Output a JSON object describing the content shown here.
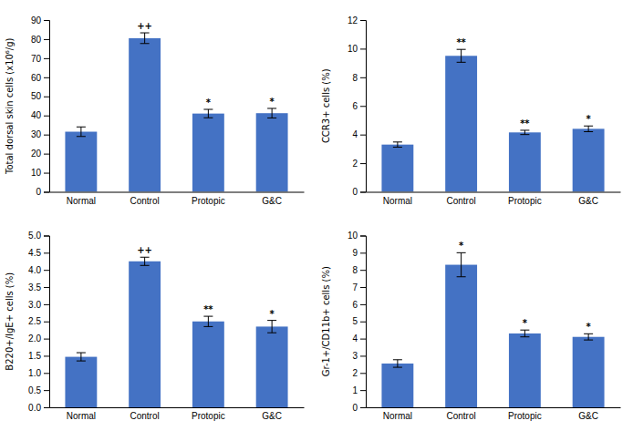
{
  "chart_data": [
    {
      "type": "bar",
      "categories": [
        "Normal",
        "Control",
        "Protopic",
        "G&C"
      ],
      "color": "#4472C4",
      "ylabel": "Total dorsal skin cells (x10⁶/g)",
      "values": [
        31.5,
        80.5,
        41.0,
        41.2
      ],
      "errors": [
        2.5,
        2.8,
        2.2,
        2.5
      ],
      "ylim": [
        0,
        90
      ],
      "yticks": [
        0,
        10,
        20,
        30,
        40,
        50,
        60,
        70,
        80,
        90
      ],
      "annotations": [
        null,
        "++",
        "*",
        "*"
      ],
      "grid": false
    },
    {
      "type": "bar",
      "categories": [
        "Normal",
        "Control",
        "Protopic",
        "G&C"
      ],
      "color": "#4472C4",
      "ylabel": "CCR3+ cells (%)",
      "values": [
        3.3,
        9.5,
        4.15,
        4.4
      ],
      "errors": [
        0.18,
        0.45,
        0.15,
        0.2
      ],
      "ylim": [
        0,
        12
      ],
      "yticks": [
        0,
        2,
        4,
        6,
        8,
        10,
        12
      ],
      "annotations": [
        null,
        "**",
        "**",
        "*"
      ],
      "grid": false
    },
    {
      "type": "bar",
      "categories": [
        "Normal",
        "Control",
        "Protopic",
        "G&C"
      ],
      "color": "#4472C4",
      "ylabel": "B220+/IgE+ cells (%)",
      "values": [
        1.47,
        4.25,
        2.5,
        2.35
      ],
      "errors": [
        0.12,
        0.12,
        0.15,
        0.18
      ],
      "ylim": [
        0,
        5
      ],
      "yticks": [
        {
          "value": 0,
          "label": "0.0"
        },
        0.5,
        {
          "value": 1,
          "label": "1.0"
        },
        1.5,
        {
          "value": 2,
          "label": "2.0"
        },
        2.5,
        {
          "value": 3,
          "label": "3.0"
        },
        3.5,
        {
          "value": 4,
          "label": "4.0"
        },
        4.5,
        {
          "value": 5,
          "label": "5.0"
        }
      ],
      "annotations": [
        null,
        "++",
        "**",
        "*"
      ],
      "grid": false
    },
    {
      "type": "bar",
      "categories": [
        "Normal",
        "Control",
        "Protopic",
        "G&C"
      ],
      "color": "#4472C4",
      "ylabel": "Gr-1+/CD11b+ cells (%)",
      "values": [
        2.55,
        8.3,
        4.3,
        4.1
      ],
      "errors": [
        0.22,
        0.7,
        0.2,
        0.18
      ],
      "ylim": [
        0,
        10
      ],
      "yticks": [
        0,
        1,
        2,
        3,
        4,
        5,
        6,
        7,
        8,
        9,
        10
      ],
      "annotations": [
        null,
        "*",
        "*",
        "*"
      ],
      "grid": false
    }
  ]
}
